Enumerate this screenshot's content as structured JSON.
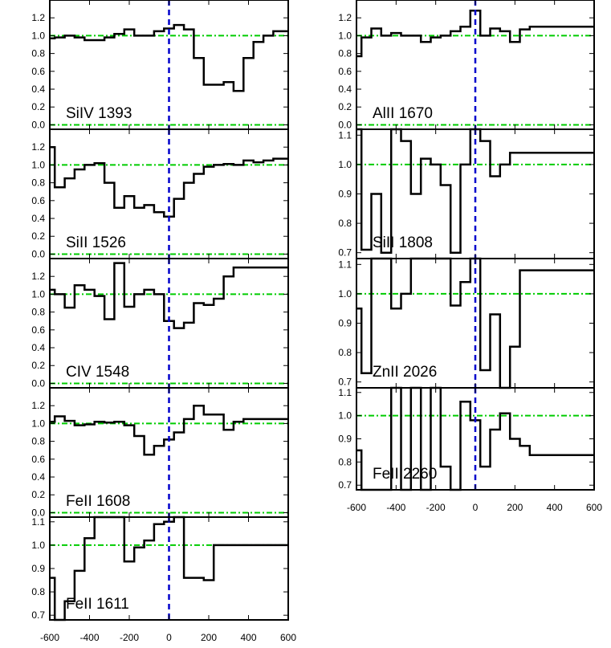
{
  "chart_data": [
    {
      "type": "line",
      "label": "SiIV 1393",
      "ylim": [
        -0.05,
        1.4
      ],
      "yticks": [
        "0.0",
        "0.2",
        "0.4",
        "0.6",
        "0.8",
        "1.0",
        "1.2"
      ],
      "x": [
        -600,
        -550,
        -500,
        -450,
        -400,
        -350,
        -300,
        -250,
        -200,
        -150,
        -100,
        -50,
        0,
        50,
        100,
        150,
        200,
        250,
        300,
        350,
        400,
        450,
        500,
        550,
        600
      ],
      "values": [
        0.97,
        0.98,
        1.0,
        0.98,
        0.95,
        0.95,
        0.98,
        1.02,
        1.07,
        1.0,
        1.0,
        1.05,
        1.08,
        1.12,
        1.07,
        0.75,
        0.45,
        0.45,
        0.48,
        0.38,
        0.75,
        0.93,
        1.0,
        1.05,
        1.05
      ]
    },
    {
      "type": "line",
      "label": "SiII 1526",
      "ylim": [
        -0.05,
        1.4
      ],
      "yticks": [
        "0.0",
        "0.2",
        "0.4",
        "0.6",
        "0.8",
        "1.0",
        "1.2"
      ],
      "x": [
        -600,
        -550,
        -500,
        -450,
        -400,
        -350,
        -300,
        -250,
        -200,
        -150,
        -100,
        -50,
        0,
        50,
        100,
        150,
        200,
        250,
        300,
        350,
        400,
        450,
        500,
        550,
        600
      ],
      "values": [
        1.2,
        0.75,
        0.85,
        0.95,
        1.0,
        1.02,
        0.8,
        0.52,
        0.65,
        0.52,
        0.55,
        0.47,
        0.42,
        0.62,
        0.8,
        0.9,
        0.98,
        1.0,
        1.01,
        1.0,
        1.05,
        1.03,
        1.05,
        1.07,
        1.07
      ]
    },
    {
      "type": "line",
      "label": "CIV 1548",
      "ylim": [
        -0.05,
        1.4
      ],
      "yticks": [
        "0.0",
        "0.2",
        "0.4",
        "0.6",
        "0.8",
        "1.0",
        "1.2"
      ],
      "x": [
        -600,
        -550,
        -500,
        -450,
        -400,
        -350,
        -300,
        -250,
        -200,
        -150,
        -100,
        -50,
        0,
        50,
        100,
        150,
        200,
        250,
        300,
        350,
        400,
        450,
        500,
        550,
        600
      ],
      "values": [
        1.05,
        1.0,
        0.85,
        1.1,
        1.05,
        0.98,
        0.72,
        1.35,
        0.86,
        1.0,
        1.05,
        1.0,
        0.7,
        0.62,
        0.68,
        0.9,
        0.88,
        0.95,
        1.2,
        1.3,
        1.3,
        1.3,
        1.3,
        1.3,
        1.3
      ]
    },
    {
      "type": "line",
      "label": "FeII 1608",
      "ylim": [
        -0.05,
        1.4
      ],
      "yticks": [
        "0.0",
        "0.2",
        "0.4",
        "0.6",
        "0.8",
        "1.0",
        "1.2"
      ],
      "x": [
        -600,
        -550,
        -500,
        -450,
        -400,
        -350,
        -300,
        -250,
        -200,
        -150,
        -100,
        -50,
        0,
        50,
        100,
        150,
        200,
        250,
        300,
        350,
        400,
        450,
        500,
        550,
        600
      ],
      "values": [
        1.02,
        1.08,
        1.03,
        0.98,
        0.99,
        1.02,
        1.01,
        1.02,
        0.98,
        0.86,
        0.65,
        0.75,
        0.82,
        0.9,
        1.05,
        1.2,
        1.1,
        1.1,
        0.93,
        1.02,
        1.05,
        1.05,
        1.05,
        1.05,
        1.05
      ]
    },
    {
      "type": "line",
      "label": "FeII 1611",
      "ylim": [
        0.68,
        1.12
      ],
      "yticks": [
        "0.7",
        "0.8",
        "0.9",
        "1.0",
        "1.1"
      ],
      "x": [
        -600,
        -550,
        -500,
        -450,
        -400,
        -350,
        -300,
        -250,
        -200,
        -150,
        -100,
        -50,
        0,
        50,
        100,
        150,
        200,
        250,
        300,
        350,
        400,
        450,
        500,
        550,
        600
      ],
      "values": [
        0.86,
        0.68,
        0.76,
        0.89,
        1.03,
        1.12,
        1.12,
        1.12,
        0.93,
        0.99,
        1.02,
        1.09,
        1.1,
        1.12,
        0.86,
        0.86,
        0.85,
        1.0,
        1.0,
        1.0,
        1.0,
        1.0,
        1.0,
        1.0,
        1.0
      ]
    },
    {
      "type": "line",
      "label": "AlII 1670",
      "ylim": [
        -0.05,
        1.4
      ],
      "yticks": [
        "0.0",
        "0.2",
        "0.4",
        "0.6",
        "0.8",
        "1.0",
        "1.2"
      ],
      "x": [
        -600,
        -550,
        -500,
        -450,
        -400,
        -350,
        -300,
        -250,
        -200,
        -150,
        -100,
        -50,
        0,
        50,
        100,
        150,
        200,
        250,
        300,
        350,
        400,
        450,
        500,
        550,
        600
      ],
      "values": [
        0.77,
        0.98,
        1.08,
        1.0,
        1.03,
        1.0,
        1.0,
        0.93,
        0.98,
        1.0,
        1.05,
        1.1,
        1.28,
        1.0,
        1.08,
        1.05,
        0.93,
        1.07,
        1.1,
        1.1,
        1.1,
        1.1,
        1.1,
        1.1,
        1.1
      ]
    },
    {
      "type": "line",
      "label": "SiII 1808",
      "ylim": [
        0.68,
        1.12
      ],
      "yticks": [
        "0.7",
        "0.8",
        "0.9",
        "1.0",
        "1.1"
      ],
      "x": [
        -600,
        -550,
        -500,
        -450,
        -400,
        -350,
        -300,
        -250,
        -200,
        -150,
        -100,
        -50,
        0,
        50,
        100,
        150,
        200,
        250,
        300,
        350,
        400,
        450,
        500,
        550,
        600
      ],
      "values": [
        1.12,
        0.71,
        0.9,
        0.7,
        1.12,
        1.08,
        0.9,
        1.02,
        1.0,
        0.93,
        0.7,
        1.0,
        1.12,
        1.08,
        0.96,
        1.0,
        1.04,
        1.04,
        1.04,
        1.04,
        1.04,
        1.04,
        1.04,
        1.04,
        1.04
      ]
    },
    {
      "type": "line",
      "label": "ZnII 2026",
      "ylim": [
        0.68,
        1.12
      ],
      "yticks": [
        "0.7",
        "0.8",
        "0.9",
        "1.0",
        "1.1"
      ],
      "x": [
        -600,
        -550,
        -500,
        -450,
        -400,
        -350,
        -300,
        -250,
        -200,
        -150,
        -100,
        -50,
        0,
        50,
        100,
        150,
        200,
        250,
        300,
        350,
        400,
        450,
        500,
        550,
        600
      ],
      "values": [
        0.95,
        0.73,
        1.12,
        1.12,
        0.95,
        1.0,
        1.12,
        1.12,
        1.12,
        1.12,
        0.96,
        1.04,
        1.12,
        0.74,
        0.93,
        0.68,
        0.82,
        1.08,
        1.08,
        1.08,
        1.08,
        1.08,
        1.08,
        1.08,
        1.08
      ]
    },
    {
      "type": "line",
      "label": "FeII 2260",
      "ylim": [
        0.68,
        1.12
      ],
      "yticks": [
        "0.7",
        "0.8",
        "0.9",
        "1.0",
        "1.1"
      ],
      "x": [
        -600,
        -550,
        -500,
        -450,
        -400,
        -350,
        -300,
        -250,
        -200,
        -150,
        -100,
        -50,
        0,
        50,
        100,
        150,
        200,
        250,
        300,
        350,
        400,
        450,
        500,
        550,
        600
      ],
      "values": [
        0.85,
        0.68,
        0.68,
        0.68,
        1.12,
        0.68,
        1.12,
        0.68,
        1.12,
        0.78,
        0.68,
        1.06,
        0.98,
        0.78,
        0.94,
        1.01,
        0.9,
        0.87,
        0.83,
        0.83,
        0.83,
        0.83,
        0.83,
        0.83,
        0.83
      ]
    }
  ],
  "xticks": [
    "-600",
    "-400",
    "-200",
    "0",
    "200",
    "400",
    "600"
  ],
  "colors": {
    "continuum": "#00cc00",
    "zero_velocity": "#0000cc",
    "spectrum": "#000000",
    "frame": "#000000"
  }
}
